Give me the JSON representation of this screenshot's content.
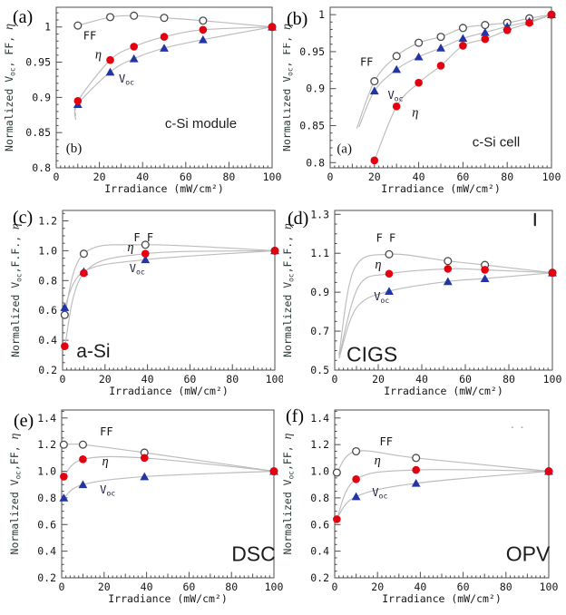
{
  "figure": {
    "background": "#ffffff",
    "description": "Normalized Voc, FF and efficiency versus irradiance for six photovoltaic technologies"
  },
  "colors": {
    "eta_red": "#e3000f",
    "voc_blue": "#2334a4",
    "marker_outline": "#4a4a4a",
    "curve_gray": "#bcbcbc",
    "frame": "#4c4c4c",
    "tick_text": "#151515",
    "ylabel_text": "#2e3c3c",
    "voc_label_text": "#1a1a3a",
    "stray": "#222222"
  },
  "chart_data": [
    {
      "type": "scatter-line",
      "panel_letter": "(a)",
      "inner_letter": {
        "text": "(b)",
        "x": 4.5,
        "y": 0.822
      },
      "material": {
        "text": "c-Si module",
        "x": 67,
        "y": 0.857,
        "size": 15,
        "anchor": "middle"
      },
      "xlabel": "Irradiance (mW/cm²)",
      "ylabel": "Normalized Voc, FF, η",
      "xlim": [
        0,
        100
      ],
      "ylim": [
        0.8,
        1.028
      ],
      "xticks": [
        0,
        20,
        40,
        60,
        80,
        100
      ],
      "yticks": [
        0.8,
        0.85,
        0.9,
        0.95,
        1
      ],
      "ytick_labels": [
        "0.8",
        "0.85",
        "0.9",
        "0.95",
        "1"
      ],
      "x_minor_step": 2,
      "y_minor_step": 0.01,
      "legend": "on-plot labels",
      "series": [
        {
          "name": "FF",
          "marker": "open-circle",
          "x": [
            10,
            25,
            36,
            50,
            68,
            100
          ],
          "y": [
            1.002,
            1.014,
            1.016,
            1.013,
            1.009,
            1.0
          ]
        },
        {
          "name": "Voc",
          "marker": "triangle",
          "x": [
            10,
            25,
            36,
            50,
            68,
            100
          ],
          "y": [
            0.89,
            0.936,
            0.955,
            0.97,
            0.982,
            1.0
          ],
          "ext": [
            [
              9,
              0.868
            ]
          ]
        },
        {
          "name": "η",
          "marker": "circle",
          "x": [
            10,
            25,
            36,
            50,
            68,
            100
          ],
          "y": [
            0.895,
            0.953,
            0.972,
            0.986,
            0.996,
            1.0
          ],
          "ext": [
            [
              9,
              0.874
            ]
          ]
        }
      ],
      "series_labels": [
        {
          "text": "FF",
          "x": 12.5,
          "y": 0.982,
          "size": 12
        },
        {
          "text": "η",
          "x": 18,
          "y": 0.9555,
          "size": 12
        },
        {
          "text": "Voc",
          "x": 29,
          "y": 0.921,
          "size": 12
        }
      ],
      "stray_marks": []
    },
    {
      "type": "scatter-line",
      "panel_letter": "(b)",
      "inner_letter": {
        "text": "(a)",
        "x": 3,
        "y": 0.8135
      },
      "material": {
        "text": "c-Si cell",
        "x": 75,
        "y": 0.822,
        "size": 15,
        "anchor": "middle"
      },
      "xlabel": "Irradiance (mW/cm²)",
      "ylabel": "Normalized Voc, FF, η",
      "xlim": [
        0,
        100
      ],
      "ylim": [
        0.793,
        1.01
      ],
      "xticks": [
        0,
        20,
        40,
        60,
        80,
        100
      ],
      "yticks": [
        0.8,
        0.85,
        0.9,
        0.95,
        1
      ],
      "ytick_labels": [
        "0.8",
        "0.85",
        "0.9",
        "0.95",
        "1"
      ],
      "x_minor_step": 2,
      "y_minor_step": 0.01,
      "legend": "on-plot labels",
      "series": [
        {
          "name": "FF",
          "marker": "open-circle",
          "x": [
            20,
            30,
            40,
            50,
            60,
            70,
            80,
            90,
            100
          ],
          "y": [
            0.91,
            0.944,
            0.962,
            0.97,
            0.982,
            0.986,
            0.989,
            0.995,
            1.0
          ],
          "ext": [
            [
              12,
              0.846
            ]
          ]
        },
        {
          "name": "Voc",
          "marker": "triangle",
          "x": [
            20,
            30,
            40,
            50,
            60,
            70,
            80,
            90,
            100
          ],
          "y": [
            0.897,
            0.926,
            0.943,
            0.955,
            0.968,
            0.976,
            0.984,
            0.991,
            1.0
          ],
          "ext": [
            [
              13,
              0.848
            ]
          ]
        },
        {
          "name": "η",
          "marker": "circle",
          "x": [
            20,
            30,
            40,
            50,
            60,
            70,
            80,
            90,
            100
          ],
          "y": [
            0.803,
            0.876,
            0.908,
            0.931,
            0.958,
            0.967,
            0.979,
            0.989,
            1.0
          ]
        }
      ],
      "series_labels": [
        {
          "text": "FF",
          "x": 13.5,
          "y": 0.931,
          "size": 12
        },
        {
          "text": "Voc",
          "x": 26,
          "y": 0.886,
          "size": 12
        },
        {
          "text": "η",
          "x": 37,
          "y": 0.862,
          "size": 12
        }
      ],
      "stray_marks": []
    },
    {
      "type": "scatter-line",
      "panel_letter": "(c)",
      "inner_letter": null,
      "material": {
        "text": "a-Si",
        "x": 6.5,
        "y": 0.285,
        "size": 21,
        "anchor": "start"
      },
      "xlabel": "Irradiance (mW/cm²)",
      "ylabel": "Normalized Voc,F.F., η",
      "xlim": [
        0,
        100
      ],
      "ylim": [
        0.2,
        1.27
      ],
      "xticks": [
        0,
        20,
        40,
        60,
        80,
        100
      ],
      "yticks": [
        0.2,
        0.4,
        0.6,
        0.8,
        1.0,
        1.2
      ],
      "ytick_labels": [
        "0.2",
        "0.4",
        "0.6",
        "0.8",
        "1.0",
        "1.2"
      ],
      "x_minor_step": 2,
      "y_minor_step": 0.05,
      "legend": "on-plot labels",
      "series": [
        {
          "name": "FF",
          "marker": "open-circle",
          "x": [
            1,
            10,
            39,
            100
          ],
          "y": [
            0.57,
            0.98,
            1.04,
            1.0
          ]
        },
        {
          "name": "Voc",
          "marker": "triangle",
          "x": [
            1,
            10,
            39,
            100
          ],
          "y": [
            0.62,
            0.86,
            0.94,
            1.0
          ]
        },
        {
          "name": "η",
          "marker": "circle",
          "x": [
            1,
            10,
            39,
            100
          ],
          "y": [
            0.36,
            0.85,
            0.98,
            1.0
          ]
        }
      ],
      "series_labels": [
        {
          "text": "F F",
          "x": 33.5,
          "y": 1.062,
          "size": 12
        },
        {
          "text": "η",
          "x": 30.5,
          "y": 0.996,
          "size": 12
        },
        {
          "text": "Voc",
          "x": 31.5,
          "y": 0.857,
          "size": 12
        }
      ],
      "stray_marks": []
    },
    {
      "type": "scatter-line",
      "panel_letter": "(d)",
      "inner_letter": null,
      "material": {
        "text": "CIGS",
        "x": 5.4,
        "y": 0.545,
        "size": 23,
        "anchor": "start"
      },
      "xlabel": "Irradiance (mW/cm²)",
      "ylabel": "Normalized Voc,F.F., η",
      "xlim": [
        0,
        100
      ],
      "ylim": [
        0.5,
        1.32
      ],
      "xticks": [
        0,
        20,
        40,
        60,
        80,
        100
      ],
      "yticks": [
        0.5,
        0.7,
        0.9,
        1.1,
        1.3
      ],
      "ytick_labels": [
        "0.5",
        "0.7",
        "0.9",
        "1.1",
        "1.3"
      ],
      "x_minor_step": 2,
      "y_minor_step": 0.05,
      "legend": "on-plot labels",
      "series": [
        {
          "name": "FF",
          "marker": "open-circle",
          "x": [
            25,
            52,
            69,
            100
          ],
          "y": [
            1.095,
            1.06,
            1.04,
            1.0
          ],
          "ext": [
            [
              2,
              0.58
            ],
            [
              9,
              1.02
            ]
          ]
        },
        {
          "name": "Voc",
          "marker": "triangle",
          "x": [
            25,
            52,
            69,
            100
          ],
          "y": [
            0.905,
            0.955,
            0.97,
            1.0
          ],
          "ext": [
            [
              2,
              0.56
            ],
            [
              10,
              0.82
            ]
          ]
        },
        {
          "name": "η",
          "marker": "circle",
          "x": [
            25,
            52,
            69,
            100
          ],
          "y": [
            0.995,
            1.02,
            1.015,
            1.0
          ],
          "ext": [
            [
              2,
              0.57
            ],
            [
              11,
              0.93
            ]
          ]
        }
      ],
      "series_labels": [
        {
          "text": "F F",
          "x": 19,
          "y": 1.16,
          "size": 12
        },
        {
          "text": "η",
          "x": 18.5,
          "y": 1.022,
          "size": 12
        },
        {
          "text": "Voc",
          "x": 18,
          "y": 0.858,
          "size": 12
        }
      ],
      "stray_marks": [
        {
          "type": "line",
          "x": 92,
          "y1": 1.245,
          "y2": 1.302
        }
      ]
    },
    {
      "type": "scatter-line",
      "panel_letter": "(e)",
      "inner_letter": null,
      "material": {
        "text": "DSC",
        "x": 80,
        "y": 0.325,
        "size": 23,
        "anchor": "start"
      },
      "xlabel": "Irradiance (mW/cm²)",
      "ylabel": "Normalized Voc,FF, η",
      "xlim": [
        0,
        100
      ],
      "ylim": [
        0.2,
        1.46
      ],
      "xticks": [
        0,
        20,
        40,
        60,
        80,
        100
      ],
      "yticks": [
        0.2,
        0.4,
        0.6,
        0.8,
        1.0,
        1.2,
        1.4
      ],
      "ytick_labels": [
        "0.2",
        "0.4",
        "0.6",
        "0.8",
        "1.0",
        "1.2",
        "1.4"
      ],
      "x_minor_step": 2,
      "y_minor_step": 0.05,
      "legend": "on-plot labels",
      "series": [
        {
          "name": "FF",
          "marker": "open-circle",
          "x": [
            1,
            10,
            39,
            100
          ],
          "y": [
            1.2,
            1.2,
            1.14,
            1.0
          ]
        },
        {
          "name": "Voc",
          "marker": "triangle",
          "x": [
            1,
            10,
            39,
            100
          ],
          "y": [
            0.8,
            0.9,
            0.96,
            1.0
          ]
        },
        {
          "name": "η",
          "marker": "circle",
          "x": [
            1,
            10,
            39,
            100
          ],
          "y": [
            0.96,
            1.09,
            1.1,
            1.0
          ]
        }
      ],
      "series_labels": [
        {
          "text": "FF",
          "x": 18,
          "y": 1.268,
          "size": 12
        },
        {
          "text": "η",
          "x": 19,
          "y": 1.044,
          "size": 12
        },
        {
          "text": "Voc",
          "x": 18,
          "y": 0.833,
          "size": 12
        }
      ],
      "stray_marks": []
    },
    {
      "type": "scatter-line",
      "panel_letter": "(f)",
      "inner_letter": null,
      "material": {
        "text": "OPV",
        "x": 80,
        "y": 0.325,
        "size": 23,
        "anchor": "start"
      },
      "xlabel": "Irradiance (mW/cm²)",
      "ylabel": "Normalized Voc,FF, η",
      "xlim": [
        0,
        100
      ],
      "ylim": [
        0.2,
        1.46
      ],
      "xticks": [
        0,
        20,
        40,
        60,
        80,
        100
      ],
      "yticks": [
        0.2,
        0.4,
        0.6,
        0.8,
        1.0,
        1.2,
        1.4
      ],
      "ytick_labels": [
        "0.2",
        "0.4",
        "0.6",
        "0.8",
        "1.0",
        "1.2",
        "1.4"
      ],
      "x_minor_step": 2,
      "y_minor_step": 0.05,
      "legend": "on-plot labels",
      "series": [
        {
          "name": "FF",
          "marker": "open-circle",
          "x": [
            1,
            10,
            38,
            100
          ],
          "y": [
            0.99,
            1.15,
            1.1,
            1.0
          ]
        },
        {
          "name": "Voc",
          "marker": "triangle",
          "x": [
            10,
            38,
            100
          ],
          "y": [
            0.81,
            0.91,
            1.0
          ],
          "ext": [
            [
              1,
              0.645
            ]
          ]
        },
        {
          "name": "η",
          "marker": "circle",
          "x": [
            1,
            10,
            38,
            100
          ],
          "y": [
            0.64,
            0.94,
            1.01,
            1.0
          ]
        }
      ],
      "series_labels": [
        {
          "text": "FF",
          "x": 21,
          "y": 1.193,
          "size": 12
        },
        {
          "text": "η",
          "x": 18.5,
          "y": 1.052,
          "size": 12
        },
        {
          "text": "Voc",
          "x": 17.5,
          "y": 0.812,
          "size": 12
        }
      ],
      "stray_marks": [
        {
          "type": "dot",
          "x": 83,
          "y": 1.33
        },
        {
          "type": "dot",
          "x": 87.5,
          "y": 1.33
        }
      ]
    }
  ]
}
